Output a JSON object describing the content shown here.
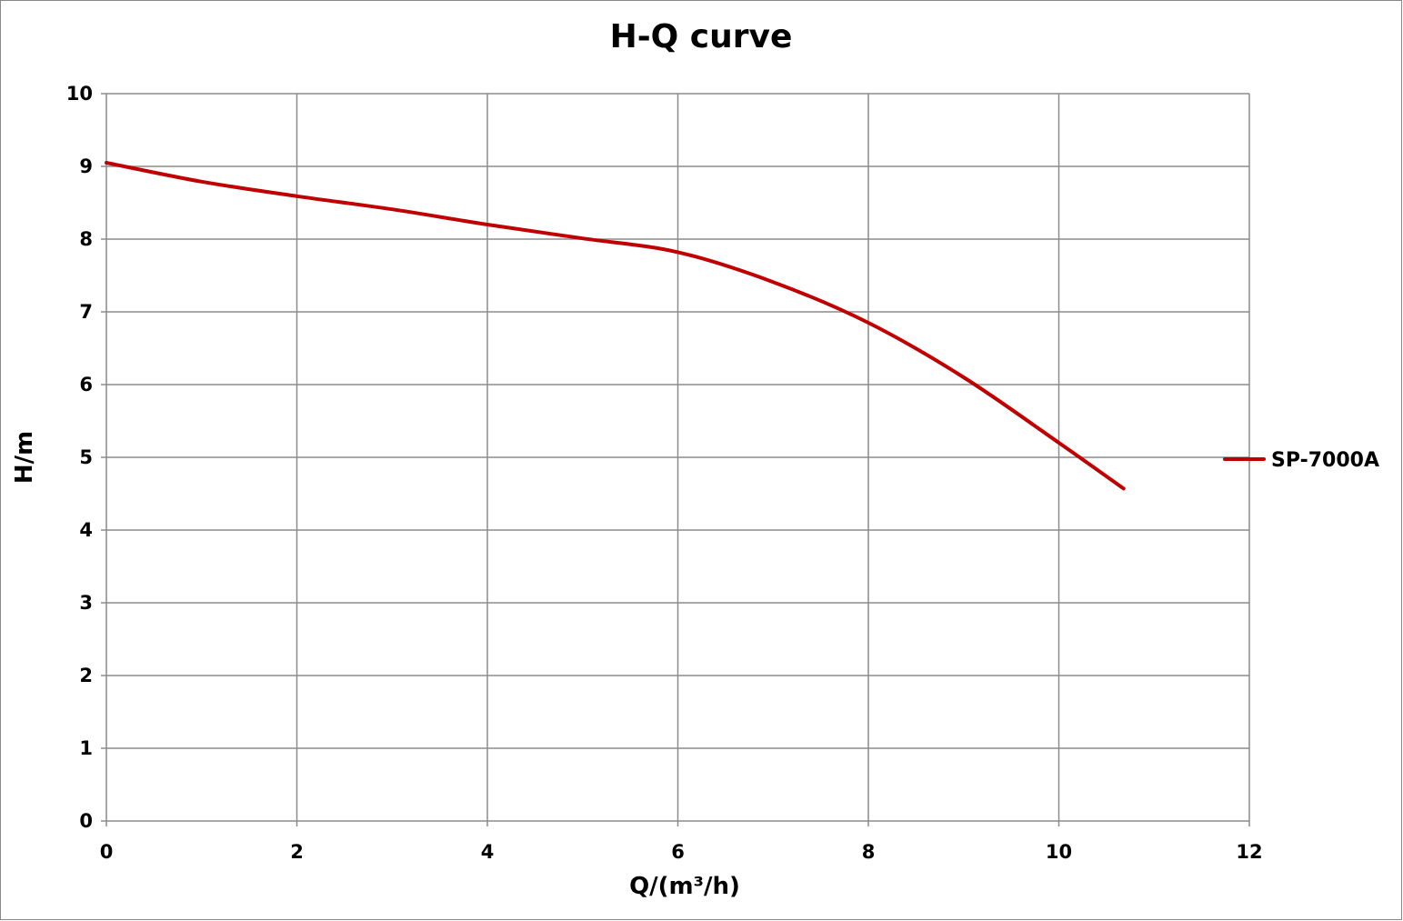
{
  "chart_data": {
    "type": "line",
    "title": "H-Q  curve",
    "xlabel": "Q/(m³/h)",
    "ylabel": "H/m",
    "xlim": [
      0,
      12
    ],
    "ylim": [
      0,
      10
    ],
    "xticks": [
      0,
      2,
      4,
      6,
      8,
      10,
      12
    ],
    "yticks": [
      0,
      1,
      2,
      3,
      4,
      5,
      6,
      7,
      8,
      9,
      10
    ],
    "grid": true,
    "legend_position": "right",
    "series": [
      {
        "name": "SP-7000A",
        "color": "#C00000",
        "x": [
          0,
          1,
          2,
          3,
          4,
          5,
          6,
          7,
          8,
          9,
          10,
          10.68
        ],
        "y": [
          9.05,
          8.79,
          8.59,
          8.41,
          8.2,
          8.01,
          7.82,
          7.41,
          6.85,
          6.1,
          5.2,
          4.57
        ]
      }
    ]
  }
}
